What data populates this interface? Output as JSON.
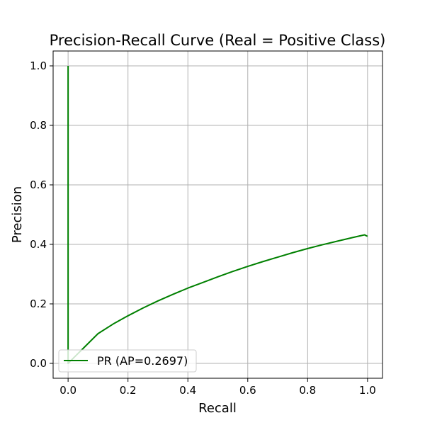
{
  "chart_data": {
    "type": "line",
    "title": "Precision-Recall Curve (Real = Positive Class)",
    "xlabel": "Recall",
    "ylabel": "Precision",
    "xlim": [
      -0.05,
      1.05
    ],
    "ylim": [
      -0.05,
      1.05
    ],
    "xticks": [
      "0.0",
      "0.2",
      "0.4",
      "0.6",
      "0.8",
      "1.0"
    ],
    "yticks": [
      "0.0",
      "0.2",
      "0.4",
      "0.6",
      "0.8",
      "1.0"
    ],
    "grid": true,
    "legend_position": "lower-left",
    "series": [
      {
        "name": "PR (AP=0.2697)",
        "color": "#008000",
        "x": [
          0.0,
          0.0,
          0.0,
          0.0,
          0.005,
          0.02,
          0.05,
          0.1,
          0.15,
          0.2,
          0.25,
          0.3,
          0.35,
          0.4,
          0.45,
          0.5,
          0.55,
          0.6,
          0.65,
          0.7,
          0.75,
          0.8,
          0.85,
          0.9,
          0.95,
          0.99,
          1.0
        ],
        "y": [
          1.0,
          0.5,
          0.05,
          0.0,
          0.005,
          0.02,
          0.05,
          0.1,
          0.132,
          0.16,
          0.186,
          0.21,
          0.232,
          0.253,
          0.272,
          0.291,
          0.309,
          0.326,
          0.342,
          0.357,
          0.372,
          0.386,
          0.399,
          0.411,
          0.423,
          0.432,
          0.427
        ]
      }
    ]
  }
}
